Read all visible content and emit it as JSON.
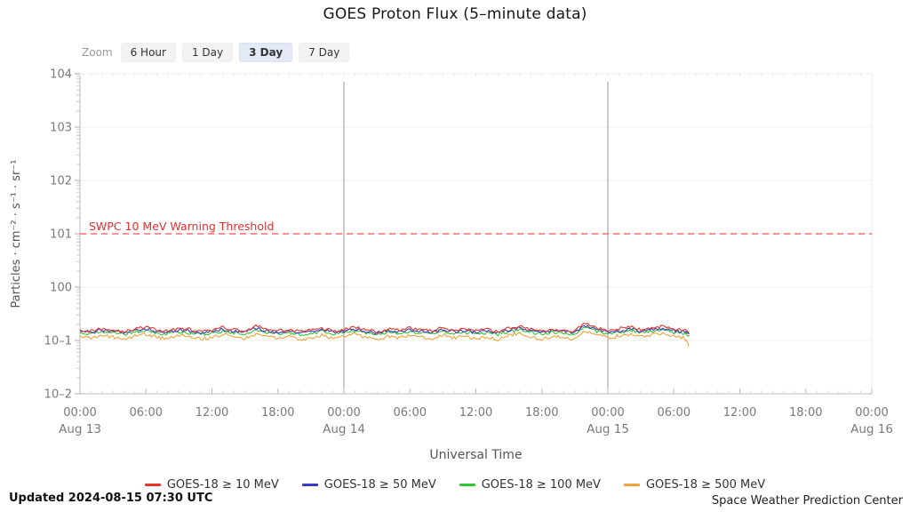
{
  "title": "GOES Proton Flux (5–minute data)",
  "toolbar": {
    "zoom_label": "Zoom",
    "options": [
      {
        "label": "6 Hour",
        "selected": false
      },
      {
        "label": "1 Day",
        "selected": false
      },
      {
        "label": "3 Day",
        "selected": true
      },
      {
        "label": "7 Day",
        "selected": false
      }
    ]
  },
  "chart_data": {
    "type": "line",
    "title": "GOES Proton Flux (5–minute data)",
    "xlabel": "Universal Time",
    "ylabel": "Particles · cm⁻² · s⁻¹ · sr⁻¹",
    "x_axis": {
      "hours_total": 72,
      "ticks": [
        {
          "label": "00:00",
          "hour": 0,
          "date": "Aug 13"
        },
        {
          "label": "06:00",
          "hour": 6
        },
        {
          "label": "12:00",
          "hour": 12
        },
        {
          "label": "18:00",
          "hour": 18
        },
        {
          "label": "00:00",
          "hour": 24,
          "date": "Aug 14"
        },
        {
          "label": "06:00",
          "hour": 30
        },
        {
          "label": "12:00",
          "hour": 36
        },
        {
          "label": "18:00",
          "hour": 42
        },
        {
          "label": "00:00",
          "hour": 48,
          "date": "Aug 15"
        },
        {
          "label": "06:00",
          "hour": 54
        },
        {
          "label": "12:00",
          "hour": 60
        },
        {
          "label": "18:00",
          "hour": 66
        },
        {
          "label": "00:00",
          "hour": 72,
          "date": "Aug 16"
        }
      ],
      "day_line_hours": [
        24,
        48
      ]
    },
    "y_axis": {
      "scale": "log",
      "min_exp": -2,
      "max_exp": 4,
      "ticks": [
        {
          "label": "104",
          "exp": 4
        },
        {
          "label": "103",
          "exp": 3
        },
        {
          "label": "102",
          "exp": 2
        },
        {
          "label": "101",
          "exp": 1
        },
        {
          "label": "100",
          "exp": 0
        },
        {
          "label": "10–1",
          "exp": -1
        },
        {
          "label": "10–2",
          "exp": -2
        }
      ]
    },
    "threshold": {
      "label": "SWPC 10 MeV Warning Threshold",
      "value": 10,
      "color": "#ef5350",
      "label_color": "#e03131"
    },
    "noise": 0.07,
    "x_hours": [
      0,
      1,
      2,
      3,
      4,
      5,
      6,
      7,
      8,
      9,
      10,
      11,
      12,
      13,
      14,
      15,
      16,
      17,
      18,
      19,
      20,
      21,
      22,
      23,
      24,
      25,
      26,
      27,
      28,
      29,
      30,
      31,
      32,
      33,
      34,
      35,
      36,
      37,
      38,
      39,
      40,
      41,
      42,
      43,
      44,
      45,
      46,
      47,
      48,
      49,
      50,
      51,
      52,
      53,
      54,
      55,
      55.4
    ],
    "series": [
      {
        "name": "GOES-18 ≥ 10 MeV",
        "color": "#e5352b",
        "values": [
          0.16,
          0.15,
          0.17,
          0.155,
          0.145,
          0.165,
          0.18,
          0.155,
          0.15,
          0.17,
          0.16,
          0.145,
          0.155,
          0.175,
          0.16,
          0.15,
          0.185,
          0.165,
          0.15,
          0.16,
          0.145,
          0.155,
          0.17,
          0.15,
          0.16,
          0.18,
          0.155,
          0.145,
          0.165,
          0.155,
          0.17,
          0.16,
          0.15,
          0.175,
          0.155,
          0.165,
          0.15,
          0.16,
          0.145,
          0.17,
          0.185,
          0.16,
          0.15,
          0.165,
          0.155,
          0.15,
          0.21,
          0.17,
          0.155,
          0.165,
          0.18,
          0.16,
          0.17,
          0.19,
          0.165,
          0.155,
          0.14
        ]
      },
      {
        "name": "GOES-18 ≥ 50 MeV",
        "color": "#3a3ac2",
        "values": [
          0.15,
          0.145,
          0.155,
          0.148,
          0.14,
          0.152,
          0.165,
          0.147,
          0.143,
          0.158,
          0.15,
          0.14,
          0.147,
          0.162,
          0.15,
          0.143,
          0.168,
          0.152,
          0.142,
          0.15,
          0.14,
          0.146,
          0.158,
          0.143,
          0.15,
          0.165,
          0.147,
          0.14,
          0.153,
          0.146,
          0.158,
          0.15,
          0.142,
          0.162,
          0.146,
          0.153,
          0.142,
          0.15,
          0.139,
          0.158,
          0.17,
          0.15,
          0.142,
          0.153,
          0.146,
          0.142,
          0.185,
          0.158,
          0.146,
          0.153,
          0.165,
          0.15,
          0.158,
          0.172,
          0.152,
          0.145,
          0.132
        ]
      },
      {
        "name": "GOES-18 ≥ 100 MeV",
        "color": "#35c435",
        "values": [
          0.14,
          0.135,
          0.146,
          0.138,
          0.131,
          0.142,
          0.154,
          0.137,
          0.133,
          0.148,
          0.14,
          0.131,
          0.137,
          0.151,
          0.14,
          0.133,
          0.156,
          0.142,
          0.132,
          0.14,
          0.13,
          0.136,
          0.148,
          0.133,
          0.14,
          0.154,
          0.137,
          0.131,
          0.143,
          0.136,
          0.148,
          0.14,
          0.132,
          0.151,
          0.136,
          0.143,
          0.132,
          0.14,
          0.129,
          0.148,
          0.158,
          0.14,
          0.132,
          0.143,
          0.136,
          0.132,
          0.172,
          0.148,
          0.136,
          0.143,
          0.154,
          0.14,
          0.148,
          0.16,
          0.142,
          0.135,
          0.125
        ]
      },
      {
        "name": "GOES-18 ≥ 500 MeV",
        "color": "#eda33c",
        "values": [
          0.12,
          0.112,
          0.126,
          0.116,
          0.106,
          0.121,
          0.132,
          0.114,
          0.109,
          0.127,
          0.119,
          0.105,
          0.113,
          0.13,
          0.118,
          0.108,
          0.134,
          0.121,
          0.107,
          0.118,
          0.104,
          0.112,
          0.127,
          0.108,
          0.118,
          0.132,
          0.113,
          0.105,
          0.122,
          0.112,
          0.127,
          0.118,
          0.106,
          0.13,
          0.112,
          0.121,
          0.106,
          0.118,
          0.103,
          0.127,
          0.136,
          0.118,
          0.106,
          0.121,
          0.112,
          0.106,
          0.148,
          0.127,
          0.112,
          0.121,
          0.132,
          0.118,
          0.127,
          0.138,
          0.12,
          0.11,
          0.078
        ]
      }
    ]
  },
  "footer": {
    "updated": "Updated 2024-08-15 07:30 UTC",
    "source": "Space Weather Prediction Center"
  }
}
